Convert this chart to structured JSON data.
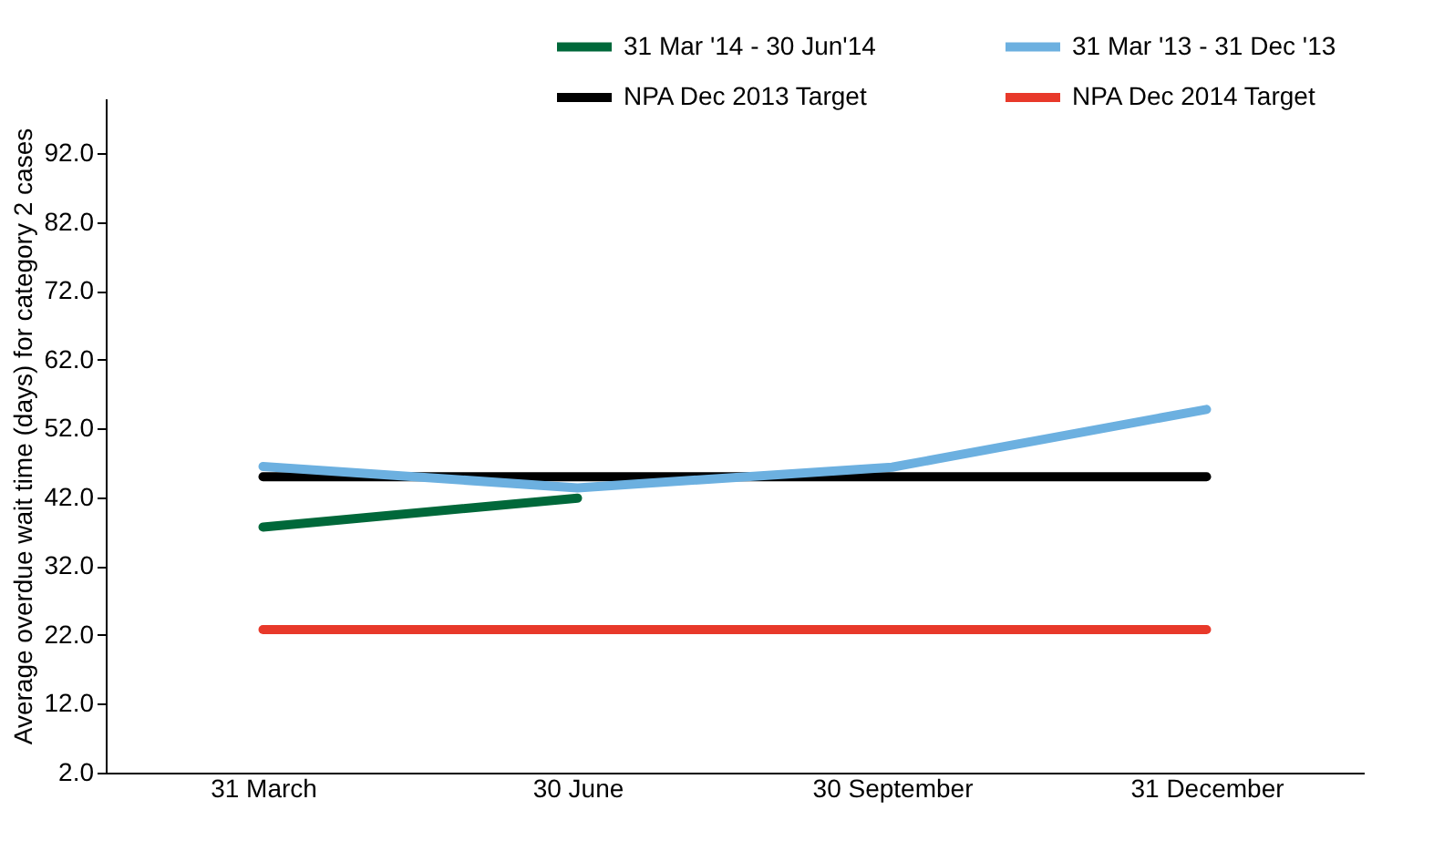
{
  "chart_data": {
    "type": "line",
    "ylabel": "Average overdue wait time (days) for category 2 cases",
    "categories": [
      "31 March",
      "30 June",
      "30 September",
      "31 December"
    ],
    "series": [
      {
        "name": "31 Mar '14 - 30 Jun'14",
        "color": "#00683a",
        "values": [
          37.7,
          41.9,
          null,
          null
        ]
      },
      {
        "name": "NPA Dec 2013 Target",
        "color": "#000000",
        "values": [
          45.0,
          45.0,
          45.0,
          45.0
        ]
      },
      {
        "name": "31 Mar '13  - 31 Dec '13",
        "color": "#6cb0e0",
        "values": [
          46.5,
          43.4,
          46.4,
          54.8
        ]
      },
      {
        "name": "NPA Dec 2014 Target",
        "color": "#e8392a",
        "values": [
          22.8,
          22.8,
          22.8,
          22.8
        ]
      }
    ],
    "ylim": [
      2,
      100
    ],
    "yticks": [
      {
        "value": 2,
        "label": "2.0"
      },
      {
        "value": 12,
        "label": "12.0"
      },
      {
        "value": 22,
        "label": "22.0"
      },
      {
        "value": 32,
        "label": "32.0"
      },
      {
        "value": 42,
        "label": "42.0"
      },
      {
        "value": 52,
        "label": "52.0"
      },
      {
        "value": 62,
        "label": "62.0"
      },
      {
        "value": 72,
        "label": "72.0"
      },
      {
        "value": 82,
        "label": "82.0"
      },
      {
        "value": 92,
        "label": "92.0"
      }
    ],
    "grid": false,
    "legend": "top right",
    "marker": "none",
    "line_style": "solid"
  }
}
